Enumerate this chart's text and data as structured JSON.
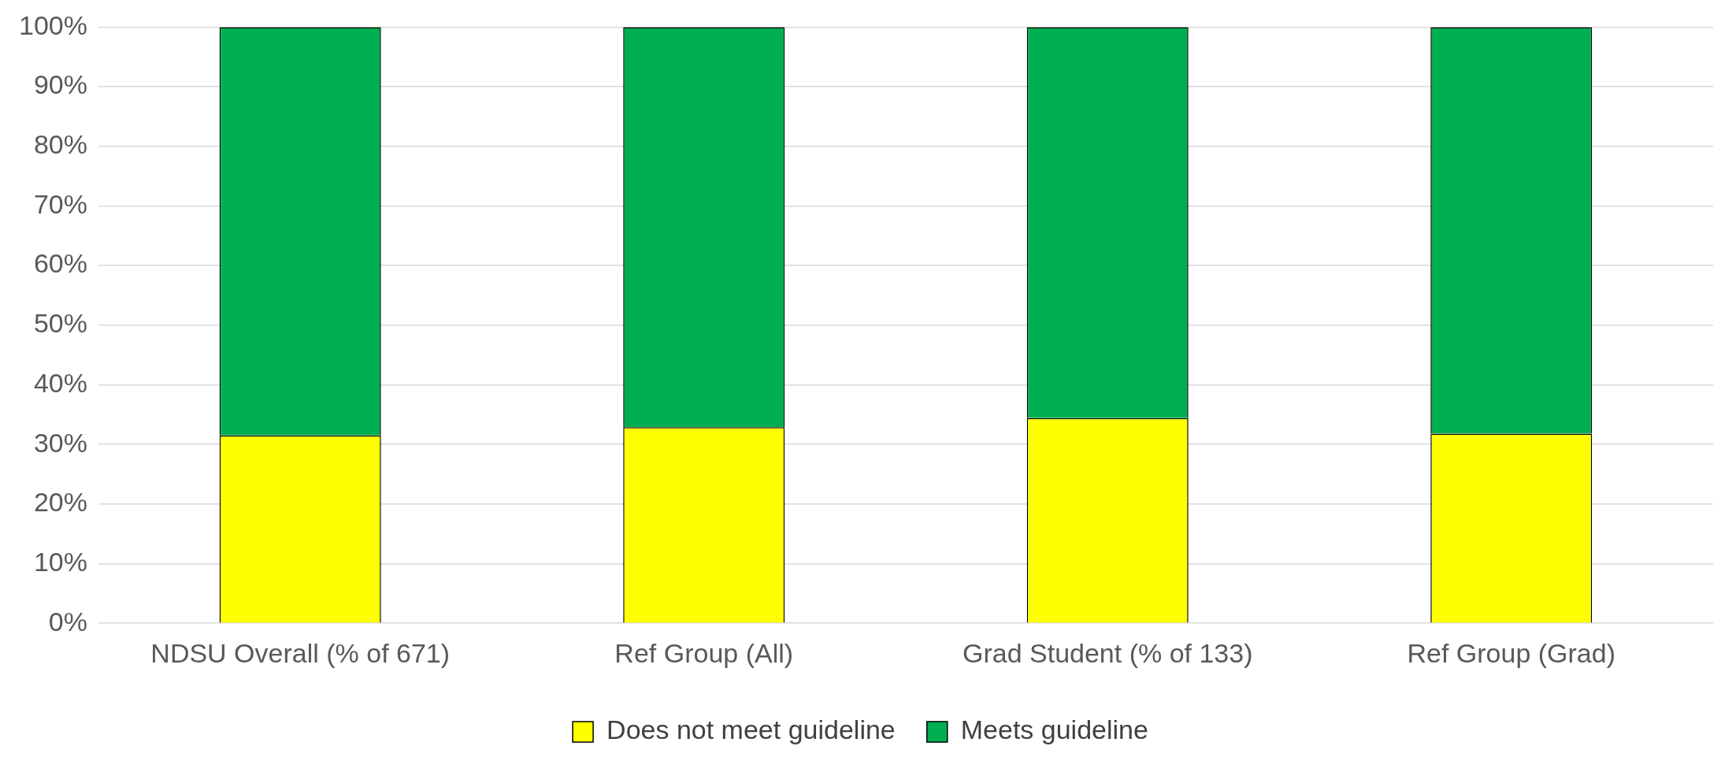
{
  "chart_data": {
    "type": "bar",
    "stacked": true,
    "categories": [
      "NDSU Overall (% of 671)",
      "Ref Group (All)",
      "Grad Student (% of 133)",
      "Ref Group (Grad)"
    ],
    "series": [
      {
        "name": "Does not meet guideline",
        "color": "#ffff00",
        "values": [
          31.5,
          32.9,
          34.4,
          31.8
        ]
      },
      {
        "name": "Meets guideline",
        "color": "#00b050",
        "values": [
          68.5,
          67.1,
          65.6,
          68.2
        ]
      }
    ],
    "ylim": [
      0,
      100
    ],
    "yticks": [
      {
        "value": 0,
        "label": "0%"
      },
      {
        "value": 10,
        "label": "10%"
      },
      {
        "value": 20,
        "label": "20%"
      },
      {
        "value": 30,
        "label": "30%"
      },
      {
        "value": 40,
        "label": "40%"
      },
      {
        "value": 50,
        "label": "50%"
      },
      {
        "value": 60,
        "label": "60%"
      },
      {
        "value": 70,
        "label": "70%"
      },
      {
        "value": 80,
        "label": "80%"
      },
      {
        "value": 90,
        "label": "90%"
      },
      {
        "value": 100,
        "label": "100%"
      }
    ],
    "grid": "y",
    "legend": "bottom"
  }
}
